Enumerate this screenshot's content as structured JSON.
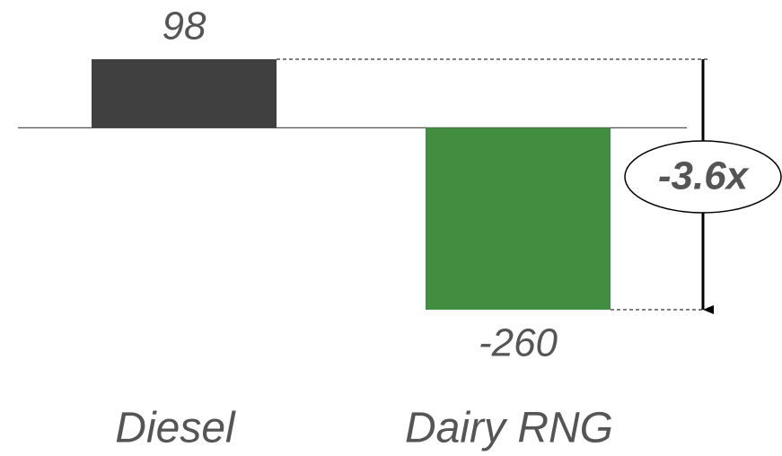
{
  "chart_data": {
    "type": "bar",
    "categories": [
      "Diesel",
      "Dairy RNG"
    ],
    "values": [
      98,
      -260
    ],
    "colors": [
      "#404040",
      "#428e41"
    ],
    "annotation": "-3.6x"
  }
}
